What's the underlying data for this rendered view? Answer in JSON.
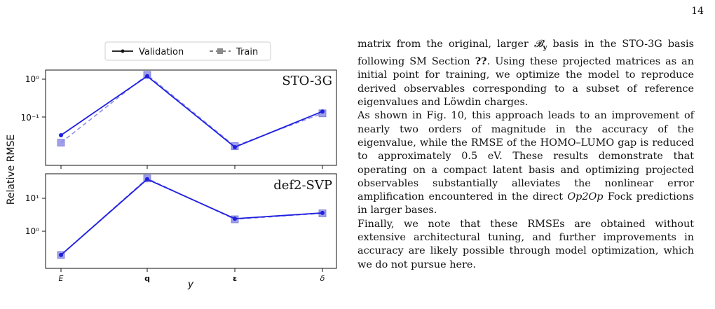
{
  "page": {
    "number": "14"
  },
  "figure": {
    "legend": {
      "validation": "Validation",
      "train": "Train"
    },
    "ylabel": "Relative RMSE",
    "xlabel": "y",
    "x_ticks": [
      "E",
      "q",
      "ε",
      "δ"
    ],
    "top_ticks": [
      "10⁰",
      "10⁻¹"
    ],
    "bottom_ticks": [
      "10¹",
      "10⁰"
    ],
    "colors": {
      "validation": "#1f1fe0",
      "train": "#8f8fe6"
    }
  },
  "chart_data": [
    {
      "type": "line",
      "title": "STO-3G",
      "categories": [
        "E",
        "q",
        "ε",
        "δ"
      ],
      "ylabel": "Relative RMSE",
      "yscale": "log",
      "ylim": [
        0.0125,
        1.6
      ],
      "series": [
        {
          "name": "Validation",
          "values": [
            0.033,
            1.2,
            0.016,
            0.14
          ]
        },
        {
          "name": "Train",
          "values": [
            0.021,
            1.3,
            0.017,
            0.125
          ]
        }
      ]
    },
    {
      "type": "line",
      "title": "def2-SVP",
      "categories": [
        "E",
        "q",
        "ε",
        "δ"
      ],
      "xlabel": "y",
      "ylabel": "Relative RMSE",
      "yscale": "log",
      "ylim": [
        0.15,
        60
      ],
      "series": [
        {
          "name": "Validation",
          "values": [
            0.19,
            38,
            2.4,
            3.6
          ]
        },
        {
          "name": "Train",
          "values": [
            0.19,
            40,
            2.3,
            3.5
          ]
        }
      ]
    }
  ],
  "text": {
    "p1_part1": "matrix from the original, larger ",
    "p1_math": "𝓑",
    "p1_sub": "y",
    "p1_part2": " basis in the STO-3G basis following SM Section ",
    "p1_ref": "??",
    "p1_part3": ". Using these projected matrices as an initial point for training, we optimize the model to reproduce derived observables corresponding to a subset of reference eigenvalues and Löwdin charges.",
    "p2": "As shown in Fig. 10, this approach leads to an improvement of nearly two orders of magnitude in the accuracy of the eigenvalue, while the RMSE of the HOMO–LUMO gap is reduced to approximately 0.5 eV. These results demonstrate that operating on a compact latent basis and optimizing projected observables substantially alleviates the nonlinear error amplification encountered in the direct ",
    "p2_em": "Op2Op",
    "p2_end": " Fock predictions in larger bases.",
    "p3": "Finally, we note that these RMSEs are obtained without extensive architectural tuning, and further improvements in accuracy are likely possible through model optimization, which we do not pursue here."
  }
}
